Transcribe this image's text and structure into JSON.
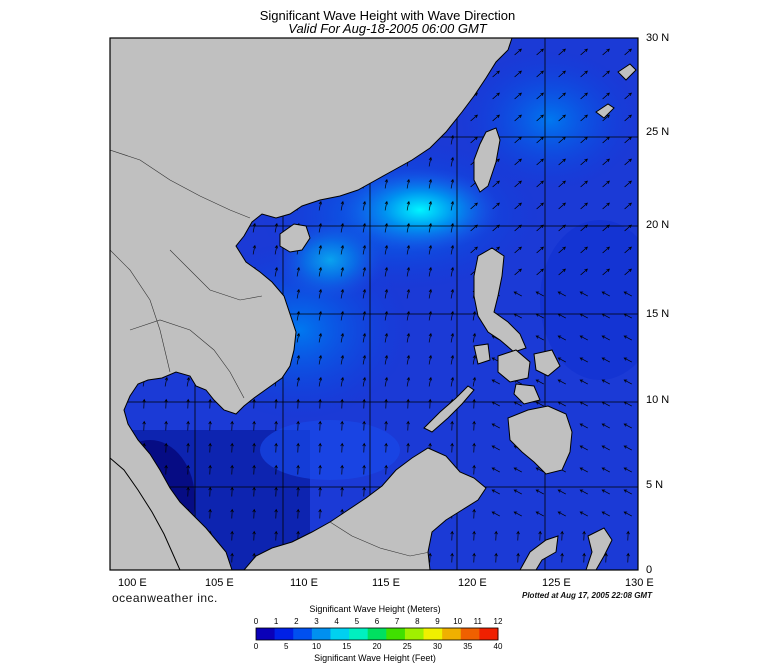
{
  "title": "Significant Wave Height with Wave Direction",
  "subtitle": "Valid For Aug-18-2005 06:00 GMT",
  "lon_labels": [
    "100 E",
    "105 E",
    "110 E",
    "115 E",
    "120 E",
    "125 E",
    "130 E"
  ],
  "lat_labels": [
    "30 N",
    "25 N",
    "20 N",
    "15 N",
    "10 N",
    "5 N",
    "0"
  ],
  "brand": "oceanweather inc.",
  "plotted": "Plotted at Aug 17, 2005 22:08 GMT",
  "legend": {
    "meters_title": "Significant Wave Height (Meters)",
    "meters_ticks": [
      "0",
      "1",
      "2",
      "3",
      "4",
      "5",
      "6",
      "7",
      "8",
      "9",
      "10",
      "11",
      "12"
    ],
    "feet_title": "Significant Wave Height (Feet)",
    "feet_ticks": [
      "0",
      "5",
      "10",
      "15",
      "20",
      "25",
      "30",
      "35",
      "40"
    ],
    "colors": [
      "#0a00b8",
      "#0020e6",
      "#0050f0",
      "#0090f0",
      "#00d0f0",
      "#00f0c0",
      "#00e060",
      "#40e000",
      "#a0f000",
      "#f0f000",
      "#f0b000",
      "#f06000",
      "#f02000"
    ]
  },
  "colors": {
    "land": "#c0c0c0",
    "ocean_deep": "#1a3cd9",
    "ocean_high": "#00e8f8",
    "grid": "#000000"
  }
}
